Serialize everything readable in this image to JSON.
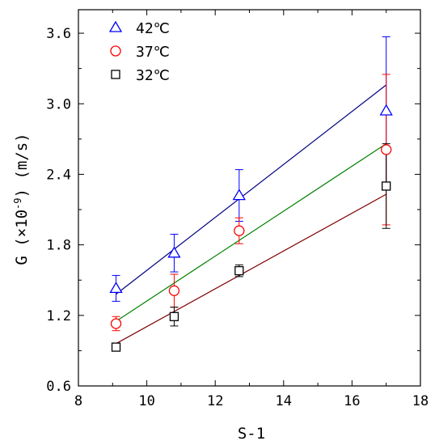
{
  "chart_data": {
    "type": "scatter",
    "xlabel": "S-1",
    "ylabel_prefix": "G (×10",
    "ylabel_exp": "-9",
    "ylabel_suffix": ") (m/s)",
    "xlim": [
      8,
      18
    ],
    "ylim": [
      0.6,
      3.8
    ],
    "xticks": [
      8,
      10,
      12,
      14,
      16,
      18
    ],
    "xtick_labels": [
      "8",
      "10",
      "12",
      "14",
      "16",
      "18"
    ],
    "yticks": [
      0.6,
      1.2,
      1.8,
      2.4,
      3.0,
      3.6
    ],
    "ytick_labels": [
      "0.6",
      "1.2",
      "1.8",
      "2.4",
      "3.0",
      "3.6"
    ],
    "grid": false,
    "legend_position": "top-left",
    "series": [
      {
        "name": "42℃",
        "marker": "triangle",
        "color": "#0000ff",
        "line_color": "#000080",
        "x": [
          9.1,
          10.8,
          12.7,
          17.0
        ],
        "y": [
          1.43,
          1.73,
          2.22,
          2.94
        ],
        "yerr": [
          0.11,
          0.16,
          0.22,
          0.63
        ],
        "fit_x": [
          9.1,
          17.0
        ],
        "fit_y": [
          1.38,
          3.16
        ]
      },
      {
        "name": "37℃",
        "marker": "circle",
        "color": "#ff0000",
        "line_color": "#008000",
        "x": [
          9.1,
          10.8,
          12.7,
          17.0
        ],
        "y": [
          1.13,
          1.41,
          1.92,
          2.61
        ],
        "yerr": [
          0.06,
          0.14,
          0.11,
          0.64
        ],
        "fit_x": [
          9.1,
          17.0
        ],
        "fit_y": [
          1.15,
          2.66
        ]
      },
      {
        "name": "32℃",
        "marker": "square",
        "color": "#000000",
        "line_color": "#800000",
        "x": [
          9.1,
          10.8,
          12.7,
          17.0
        ],
        "y": [
          0.93,
          1.19,
          1.58,
          2.3
        ],
        "yerr": [
          0.0,
          0.08,
          0.05,
          0.36
        ],
        "fit_x": [
          9.1,
          17.0
        ],
        "fit_y": [
          0.96,
          2.23
        ]
      }
    ]
  }
}
